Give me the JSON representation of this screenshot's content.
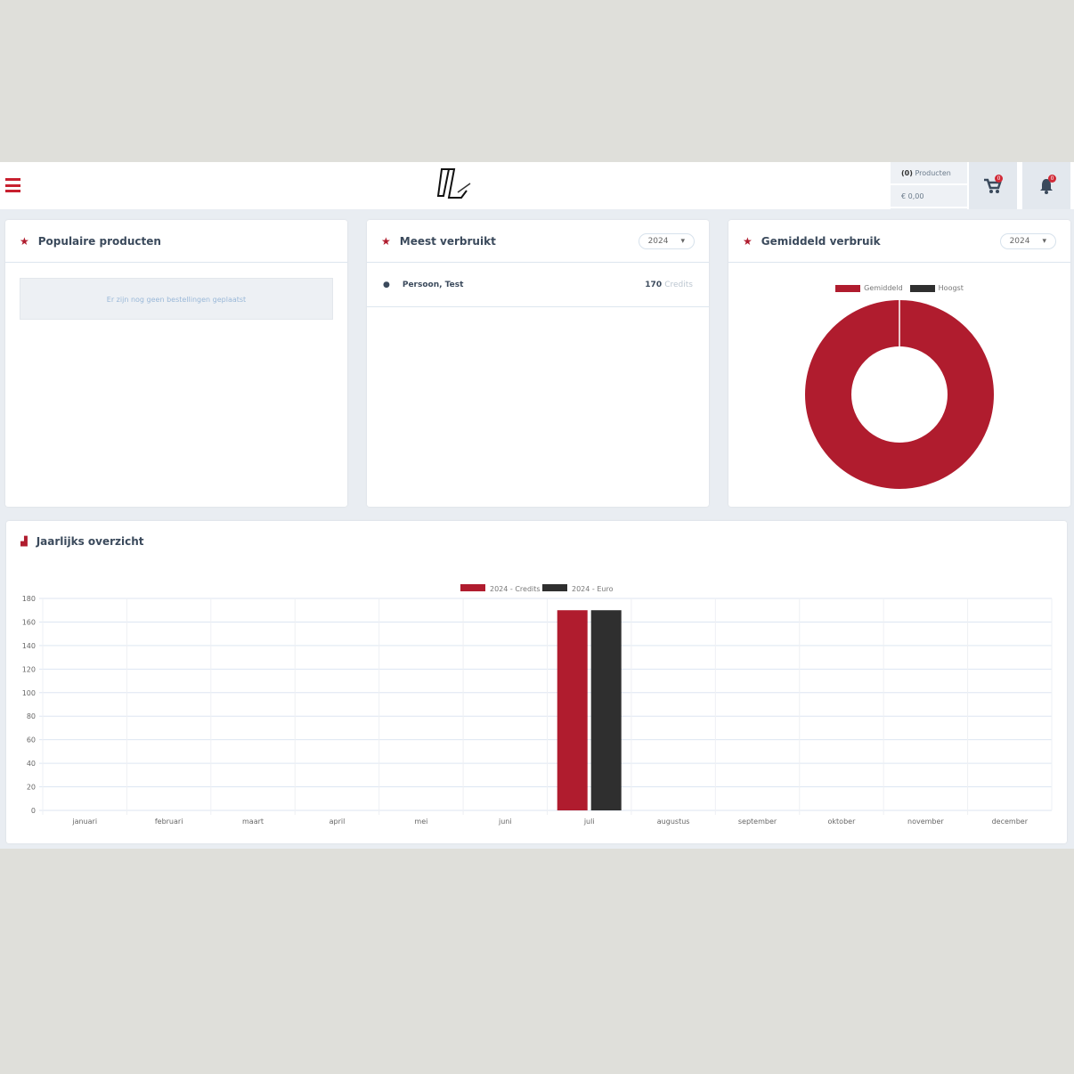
{
  "header": {
    "cart_count": "(0)",
    "cart_label": "Producten",
    "cart_total": "€ 0,00",
    "cart_badge": "0",
    "bell_badge": "0"
  },
  "cards": {
    "popular": {
      "title": "Populaire producten",
      "empty": "Er zijn nog geen bestellingen geplaatst"
    },
    "most_used": {
      "title": "Meest verbruikt",
      "year": "2024",
      "rows": [
        {
          "name": "Persoon, Test",
          "value": "170",
          "unit": "Credits"
        }
      ]
    },
    "average": {
      "title": "Gemiddeld verbruik",
      "year": "2024"
    },
    "yearly": {
      "title": "Jaarlijks overzicht"
    }
  },
  "colors": {
    "accent": "#b01c2e",
    "dark": "#2f2f2f"
  },
  "chart_data": [
    {
      "type": "pie",
      "donut": true,
      "legend": [
        "Gemiddeld",
        "Hoogst"
      ],
      "colors": [
        "#b01c2e",
        "#2f2f2f"
      ],
      "values": [
        170,
        0
      ]
    },
    {
      "type": "bar",
      "categories": [
        "januari",
        "februari",
        "maart",
        "april",
        "mei",
        "juni",
        "juli",
        "augustus",
        "september",
        "oktober",
        "november",
        "december"
      ],
      "series": [
        {
          "name": "2024 - Credits",
          "color": "#b01c2e",
          "values": [
            0,
            0,
            0,
            0,
            0,
            0,
            170,
            0,
            0,
            0,
            0,
            0
          ]
        },
        {
          "name": "2024 - Euro",
          "color": "#2f2f2f",
          "values": [
            0,
            0,
            0,
            0,
            0,
            0,
            170,
            0,
            0,
            0,
            0,
            0
          ]
        }
      ],
      "ylim": [
        0,
        180
      ],
      "yticks": [
        0,
        20,
        40,
        60,
        80,
        100,
        120,
        140,
        160,
        180
      ],
      "grid": true,
      "legend": "top"
    }
  ]
}
